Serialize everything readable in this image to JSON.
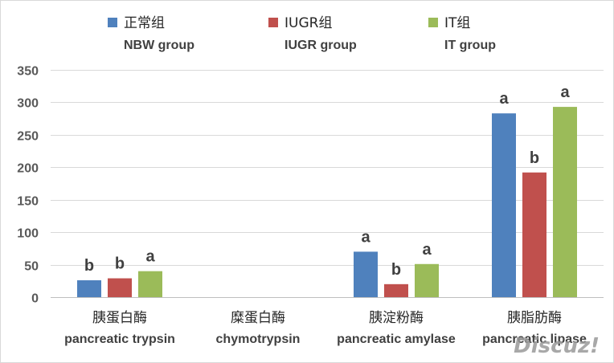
{
  "chart_data": {
    "type": "bar",
    "categories": [
      {
        "zh": "胰蛋白酶",
        "en": "pancreatic trypsin"
      },
      {
        "zh": "糜蛋白酶",
        "en": "chymotrypsin"
      },
      {
        "zh": "胰淀粉酶",
        "en": "pancreatic amylase"
      },
      {
        "zh": "胰脂肪酶",
        "en": "pancreatic lipase"
      }
    ],
    "series": [
      {
        "name_zh": "正常组",
        "name_en": "NBW group",
        "color": "#4f81bd",
        "values": [
          26,
          null,
          70,
          283
        ],
        "labels": [
          "b",
          "",
          "a",
          "a"
        ]
      },
      {
        "name_zh": "IUGR组",
        "name_en": "IUGR group",
        "color": "#c0504d",
        "values": [
          29,
          null,
          20,
          192
        ],
        "labels": [
          "b",
          "",
          "b",
          "b"
        ]
      },
      {
        "name_zh": "IT组",
        "name_en": "IT group",
        "color": "#9bbb59",
        "values": [
          40,
          null,
          51,
          293
        ],
        "labels": [
          "a",
          "",
          "a",
          "a"
        ]
      }
    ],
    "ylim": [
      0,
      350
    ],
    "yticks": [
      "0",
      "50",
      "100",
      "150",
      "200",
      "250",
      "300",
      "350"
    ],
    "grid": true,
    "legend_position": "top"
  },
  "watermark": "Discuz!"
}
